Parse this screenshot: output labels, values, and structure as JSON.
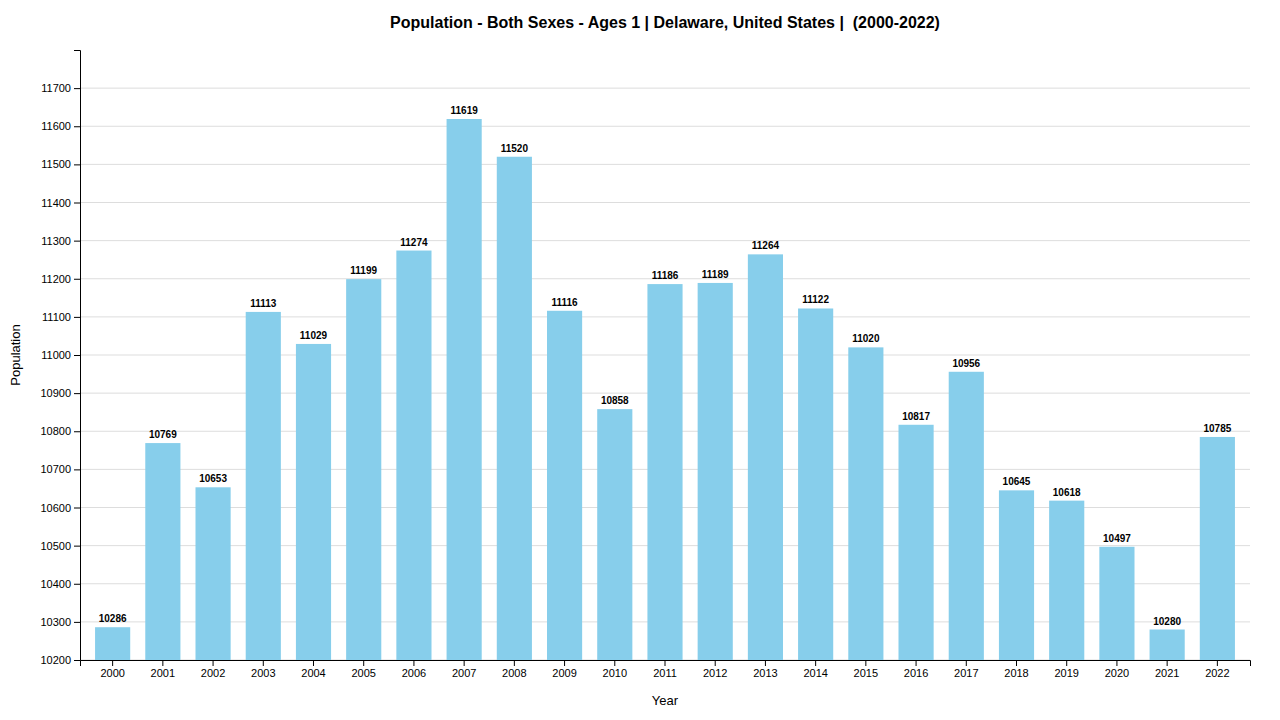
{
  "chart_data": {
    "type": "bar",
    "title": "Population - Both Sexes - Ages 1 | Delaware, United States |  (2000-2022)",
    "xlabel": "Year",
    "ylabel": "Population",
    "categories": [
      "2000",
      "2001",
      "2002",
      "2003",
      "2004",
      "2005",
      "2006",
      "2007",
      "2008",
      "2009",
      "2010",
      "2011",
      "2012",
      "2013",
      "2014",
      "2015",
      "2016",
      "2017",
      "2018",
      "2019",
      "2020",
      "2021",
      "2022"
    ],
    "values": [
      10286,
      10769,
      10653,
      11113,
      11029,
      11199,
      11274,
      11619,
      11520,
      11116,
      10858,
      11186,
      11189,
      11264,
      11122,
      11020,
      10817,
      10956,
      10645,
      10618,
      10497,
      10280,
      10785
    ],
    "color": "#87CEEB",
    "ylim": [
      10200,
      11800
    ],
    "yticks": [
      10200,
      10300,
      10400,
      10500,
      10600,
      10700,
      10800,
      10900,
      11000,
      11100,
      11200,
      11300,
      11400,
      11500,
      11600,
      11700
    ],
    "grid": true,
    "data_labels": true
  }
}
